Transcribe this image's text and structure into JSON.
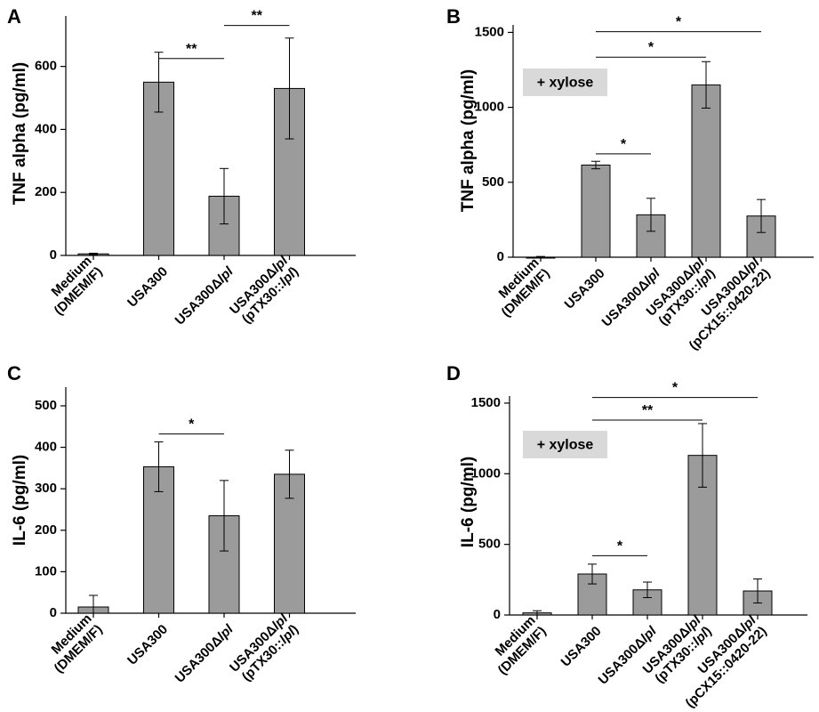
{
  "chart_data": [
    {
      "type": "bar",
      "panel_label": "A",
      "ylabel": "TNF alpha (pg/ml)",
      "ylim": [
        0,
        760
      ],
      "yticks": [
        0,
        200,
        400,
        600
      ],
      "categories": [
        [
          "Medium",
          "(DMEM/F)"
        ],
        [
          "USA300"
        ],
        [
          {
            "t": "USA300"
          },
          {
            "t": "Δ"
          },
          {
            "t": "lpl",
            "i": true
          }
        ],
        [
          [
            {
              "t": "USA300"
            },
            {
              "t": "Δ"
            },
            {
              "t": "lpl",
              "i": true
            }
          ],
          [
            {
              "t": "(pTX30::"
            },
            {
              "t": "lpl",
              "i": true
            },
            {
              "t": ")"
            }
          ]
        ]
      ],
      "values": [
        5,
        550,
        188,
        530
      ],
      "errors": [
        2,
        95,
        88,
        160
      ],
      "significance": [
        {
          "from": 1,
          "to": 2,
          "level": 625,
          "label": "**"
        },
        {
          "from": 2,
          "to": 3,
          "level": 730,
          "label": "**"
        }
      ],
      "note": ""
    },
    {
      "type": "bar",
      "panel_label": "B",
      "ylabel": "TNF alpha (pg/ml)",
      "ylim": [
        0,
        1550
      ],
      "yticks": [
        0,
        500,
        1000,
        1500
      ],
      "categories": [
        [
          "Medium",
          "(DMEM/F)"
        ],
        [
          "USA300"
        ],
        [
          {
            "t": "USA300"
          },
          {
            "t": "Δ"
          },
          {
            "t": "lpl",
            "i": true
          }
        ],
        [
          [
            {
              "t": "USA300"
            },
            {
              "t": "Δ"
            },
            {
              "t": "lpl",
              "i": true
            }
          ],
          [
            {
              "t": "(pTX30::"
            },
            {
              "t": "lpl",
              "i": true
            },
            {
              "t": ")"
            }
          ]
        ],
        [
          [
            {
              "t": "USA300"
            },
            {
              "t": "Δ"
            },
            {
              "t": "lpl",
              "i": true
            }
          ],
          [
            {
              "t": "(pCX15::0420-22)"
            }
          ]
        ]
      ],
      "values": [
        0,
        615,
        283,
        1150,
        275
      ],
      "errors": [
        5,
        25,
        110,
        155,
        110
      ],
      "significance": [
        {
          "from": 1,
          "to": 2,
          "level": 690,
          "label": "*"
        },
        {
          "from": 1,
          "to": 3,
          "level": 1335,
          "label": "*"
        },
        {
          "from": 1,
          "to": 4,
          "level": 1505,
          "label": "*"
        }
      ],
      "note": "+ xylose"
    },
    {
      "type": "bar",
      "panel_label": "C",
      "ylabel": "IL-6 (pg/ml)",
      "ylim": [
        0,
        545
      ],
      "yticks": [
        0,
        100,
        200,
        300,
        400,
        500
      ],
      "categories": [
        [
          "Medium",
          "(DMEM/F)"
        ],
        [
          "USA300"
        ],
        [
          {
            "t": "USA300"
          },
          {
            "t": "Δ"
          },
          {
            "t": "lpl",
            "i": true
          }
        ],
        [
          [
            {
              "t": "USA300"
            },
            {
              "t": "Δ"
            },
            {
              "t": "lpl",
              "i": true
            }
          ],
          [
            {
              "t": "(pTX30::"
            },
            {
              "t": "lpl",
              "i": true
            },
            {
              "t": ")"
            }
          ]
        ]
      ],
      "values": [
        15,
        353,
        235,
        335
      ],
      "errors": [
        28,
        60,
        85,
        58
      ],
      "significance": [
        {
          "from": 1,
          "to": 2,
          "level": 432,
          "label": "*"
        }
      ],
      "note": ""
    },
    {
      "type": "bar",
      "panel_label": "D",
      "ylabel": "IL-6 (pg/ml)",
      "ylim": [
        0,
        1550
      ],
      "yticks": [
        0,
        500,
        1000,
        1500
      ],
      "categories": [
        [
          "Medium",
          "(DMEM/F)"
        ],
        [
          "USA300"
        ],
        [
          {
            "t": "USA300"
          },
          {
            "t": "Δ"
          },
          {
            "t": "lpl",
            "i": true
          }
        ],
        [
          [
            {
              "t": "USA300"
            },
            {
              "t": "Δ"
            },
            {
              "t": "lpl",
              "i": true
            }
          ],
          [
            {
              "t": "(pTX30::"
            },
            {
              "t": "lpl",
              "i": true
            },
            {
              "t": ")"
            }
          ]
        ],
        [
          [
            {
              "t": "USA300"
            },
            {
              "t": "Δ"
            },
            {
              "t": "lpl",
              "i": true
            }
          ],
          [
            {
              "t": "(pCX15::0420-22)"
            }
          ]
        ]
      ],
      "values": [
        15,
        290,
        178,
        1130,
        170
      ],
      "errors": [
        15,
        70,
        55,
        225,
        85
      ],
      "significance": [
        {
          "from": 1,
          "to": 2,
          "level": 420,
          "label": "*"
        },
        {
          "from": 1,
          "to": 3,
          "level": 1380,
          "label": "**"
        },
        {
          "from": 1,
          "to": 4,
          "level": 1540,
          "label": "*"
        }
      ],
      "note": "+ xylose"
    }
  ]
}
